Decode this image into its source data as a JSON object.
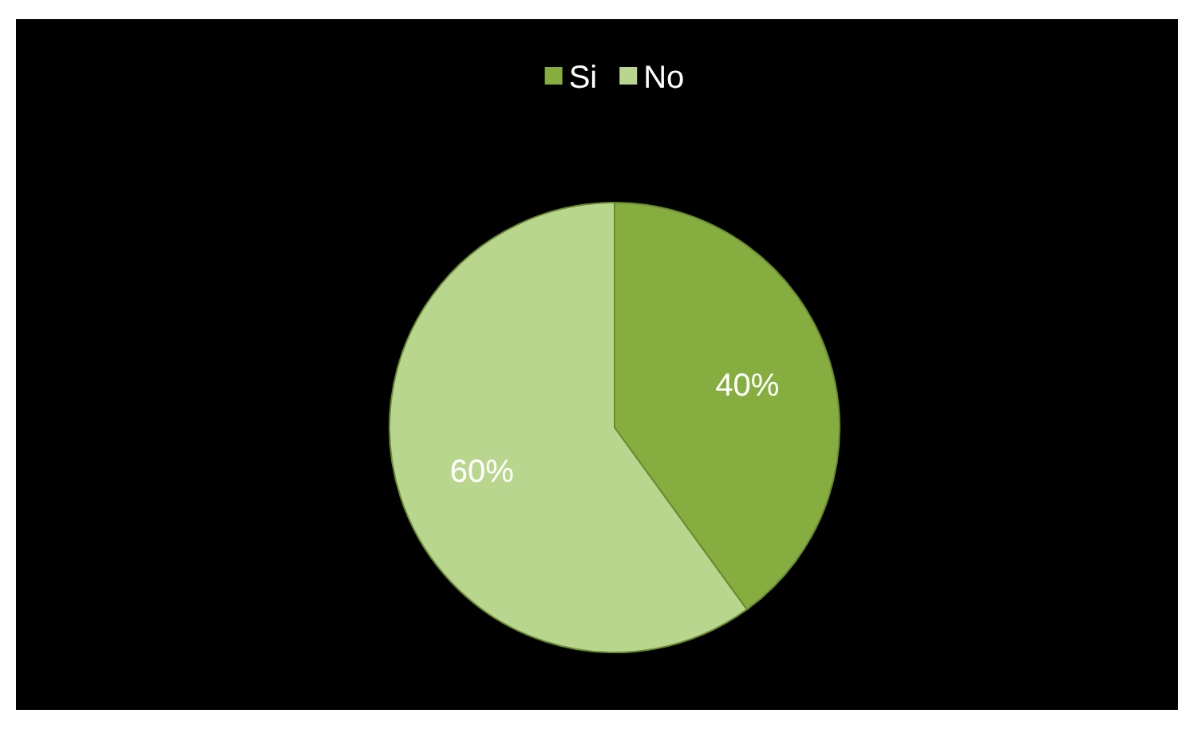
{
  "chart_data": {
    "type": "pie",
    "categories": [
      "Si",
      "No"
    ],
    "values": [
      40,
      60
    ],
    "colors": [
      "#86ad3f",
      "#b9d68e"
    ],
    "value_labels": [
      "40%",
      "60%"
    ],
    "legend": "top"
  }
}
